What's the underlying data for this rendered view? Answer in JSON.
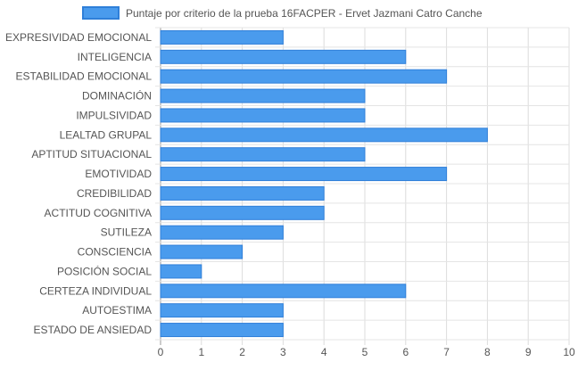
{
  "chart_data": {
    "type": "bar",
    "orientation": "horizontal",
    "categories": [
      "EXPRESIVIDAD EMOCIONAL",
      "INTELIGENCIA",
      "ESTABILIDAD EMOCIONAL",
      "DOMINACIÓN",
      "IMPULSIVIDAD",
      "LEALTAD GRUPAL",
      "APTITUD SITUACIONAL",
      "EMOTIVIDAD",
      "CREDIBILIDAD",
      "ACTITUD COGNITIVA",
      "SUTILEZA",
      "CONSCIENCIA",
      "POSICIÓN SOCIAL",
      "CERTEZA INDIVIDUAL",
      "AUTOESTIMA",
      "ESTADO DE ANSIEDAD"
    ],
    "series": [
      {
        "name": "Puntaje por criterio de la prueba 16FACPER - Ervet Jazmani Catro Canche",
        "values": [
          3,
          6,
          7,
          5,
          5,
          8,
          5,
          7,
          4,
          4,
          3,
          2,
          1,
          6,
          3,
          3
        ],
        "color": "#4a9bed",
        "border_color": "#2f7fd9"
      }
    ],
    "x_ticks": [
      "0",
      "1",
      "2",
      "3",
      "4",
      "5",
      "6",
      "7",
      "8",
      "9",
      "10"
    ],
    "xlim": [
      0,
      10
    ],
    "grid": true,
    "legend_position": "top"
  }
}
